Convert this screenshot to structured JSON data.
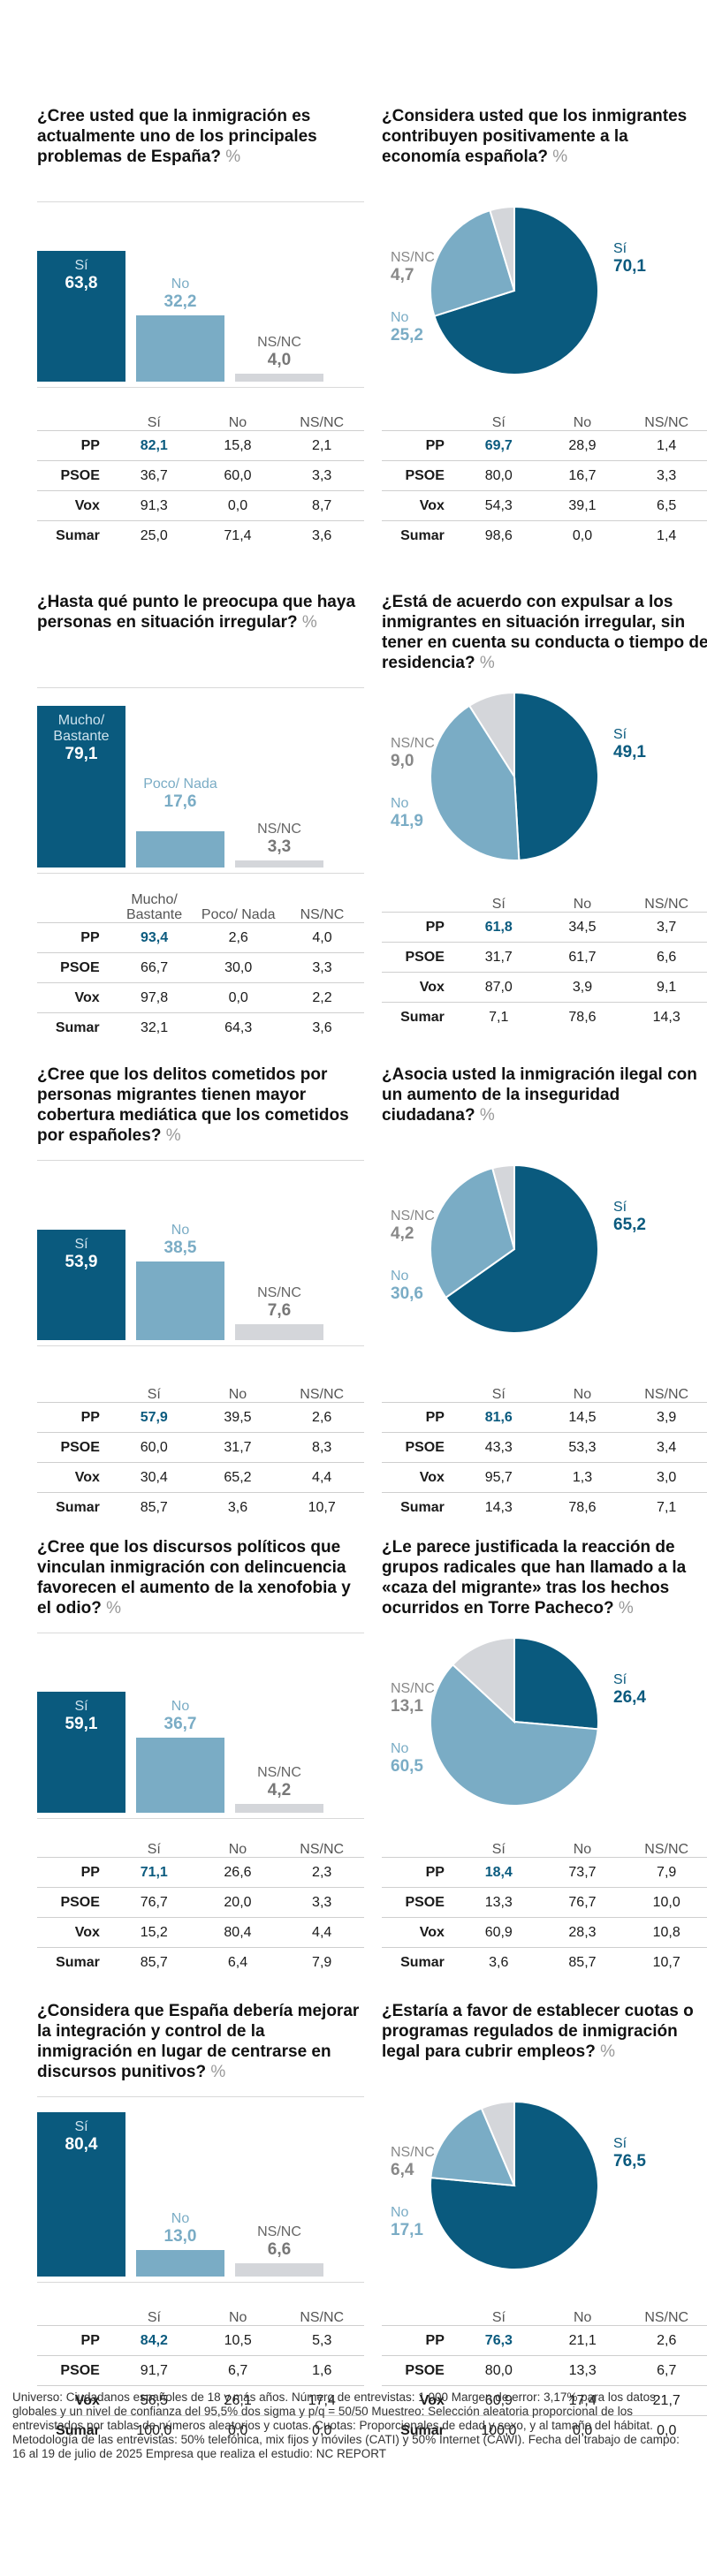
{
  "colors": {
    "dark": "#0a5a7e",
    "light": "#7aacc5",
    "grey": "#d4d6da"
  },
  "panels": [
    {
      "kind": "bar",
      "question": "¿Cree usted que la inmigración es actualmente uno de los principales problemas de España?",
      "unit": "%",
      "chart_labels": [
        "Sí",
        "No",
        "NS/NC"
      ],
      "chart_display": [
        "63,8",
        "32,2",
        "4,0"
      ],
      "table_headers": [
        "Sí",
        "No",
        "NS/NC"
      ],
      "rows": [
        {
          "party": "PP",
          "vals": [
            "82,1",
            "15,8",
            "2,1"
          ]
        },
        {
          "party": "PSOE",
          "vals": [
            "36,7",
            "60,0",
            "3,3"
          ]
        },
        {
          "party": "Vox",
          "vals": [
            "91,3",
            "0,0",
            "8,7"
          ]
        },
        {
          "party": "Sumar",
          "vals": [
            "25,0",
            "71,4",
            "3,6"
          ]
        }
      ]
    },
    {
      "kind": "pie",
      "question": "¿Considera usted que los inmigrantes contribuyen positivamente a la economía española?",
      "unit": "%",
      "chart_labels": [
        "Sí",
        "No",
        "NS/NC"
      ],
      "chart_display": [
        "70,1",
        "25,2",
        "4,7"
      ],
      "table_headers": [
        "Sí",
        "No",
        "NS/NC"
      ],
      "rows": [
        {
          "party": "PP",
          "vals": [
            "69,7",
            "28,9",
            "1,4"
          ]
        },
        {
          "party": "PSOE",
          "vals": [
            "80,0",
            "16,7",
            "3,3"
          ]
        },
        {
          "party": "Vox",
          "vals": [
            "54,3",
            "39,1",
            "6,5"
          ]
        },
        {
          "party": "Sumar",
          "vals": [
            "98,6",
            "0,0",
            "1,4"
          ]
        }
      ]
    },
    {
      "kind": "bar",
      "question": "¿Hasta qué punto le preocupa que haya personas en situación irregular?",
      "unit": "%",
      "chart_labels": [
        "Mucho/ Bastante",
        "Poco/ Nada",
        "NS/NC"
      ],
      "chart_display": [
        "79,1",
        "17,6",
        "3,3"
      ],
      "table_headers": [
        "Mucho/ Bastante",
        "Poco/ Nada",
        "NS/NC"
      ],
      "rows": [
        {
          "party": "PP",
          "vals": [
            "93,4",
            "2,6",
            "4,0"
          ]
        },
        {
          "party": "PSOE",
          "vals": [
            "66,7",
            "30,0",
            "3,3"
          ]
        },
        {
          "party": "Vox",
          "vals": [
            "97,8",
            "0,0",
            "2,2"
          ]
        },
        {
          "party": "Sumar",
          "vals": [
            "32,1",
            "64,3",
            "3,6"
          ]
        }
      ]
    },
    {
      "kind": "pie",
      "question": "¿Está de acuerdo con expulsar a los inmigrantes en situación irregular, sin tener en cuenta su conducta o tiempo de residencia?",
      "unit": "%",
      "chart_labels": [
        "Sí",
        "No",
        "NS/NC"
      ],
      "chart_display": [
        "49,1",
        "41,9",
        "9,0"
      ],
      "table_headers": [
        "Sí",
        "No",
        "NS/NC"
      ],
      "rows": [
        {
          "party": "PP",
          "vals": [
            "61,8",
            "34,5",
            "3,7"
          ]
        },
        {
          "party": "PSOE",
          "vals": [
            "31,7",
            "61,7",
            "6,6"
          ]
        },
        {
          "party": "Vox",
          "vals": [
            "87,0",
            "3,9",
            "9,1"
          ]
        },
        {
          "party": "Sumar",
          "vals": [
            "7,1",
            "78,6",
            "14,3"
          ]
        }
      ]
    },
    {
      "kind": "bar",
      "question": "¿Cree que los delitos cometidos por personas migrantes tienen mayor cobertura mediática que los cometidos por españoles?",
      "unit": "%",
      "chart_labels": [
        "Sí",
        "No",
        "NS/NC"
      ],
      "chart_display": [
        "53,9",
        "38,5",
        "7,6"
      ],
      "table_headers": [
        "Sí",
        "No",
        "NS/NC"
      ],
      "rows": [
        {
          "party": "PP",
          "vals": [
            "57,9",
            "39,5",
            "2,6"
          ]
        },
        {
          "party": "PSOE",
          "vals": [
            "60,0",
            "31,7",
            "8,3"
          ]
        },
        {
          "party": "Vox",
          "vals": [
            "30,4",
            "65,2",
            "4,4"
          ]
        },
        {
          "party": "Sumar",
          "vals": [
            "85,7",
            "3,6",
            "10,7"
          ]
        }
      ]
    },
    {
      "kind": "pie",
      "question": "¿Asocia usted la inmigración ilegal con un aumento de la inseguridad ciudadana?",
      "unit": "%",
      "chart_labels": [
        "Sí",
        "No",
        "NS/NC"
      ],
      "chart_display": [
        "65,2",
        "30,6",
        "4,2"
      ],
      "table_headers": [
        "Sí",
        "No",
        "NS/NC"
      ],
      "rows": [
        {
          "party": "PP",
          "vals": [
            "81,6",
            "14,5",
            "3,9"
          ]
        },
        {
          "party": "PSOE",
          "vals": [
            "43,3",
            "53,3",
            "3,4"
          ]
        },
        {
          "party": "Vox",
          "vals": [
            "95,7",
            "1,3",
            "3,0"
          ]
        },
        {
          "party": "Sumar",
          "vals": [
            "14,3",
            "78,6",
            "7,1"
          ]
        }
      ]
    },
    {
      "kind": "bar",
      "question": "¿Cree que los discursos políticos que vinculan inmigración con delincuencia favorecen el aumento de la xenofobia y el odio?",
      "unit": "%",
      "chart_labels": [
        "Sí",
        "No",
        "NS/NC"
      ],
      "chart_display": [
        "59,1",
        "36,7",
        "4,2"
      ],
      "table_headers": [
        "Sí",
        "No",
        "NS/NC"
      ],
      "rows": [
        {
          "party": "PP",
          "vals": [
            "71,1",
            "26,6",
            "2,3"
          ]
        },
        {
          "party": "PSOE",
          "vals": [
            "76,7",
            "20,0",
            "3,3"
          ]
        },
        {
          "party": "Vox",
          "vals": [
            "15,2",
            "80,4",
            "4,4"
          ]
        },
        {
          "party": "Sumar",
          "vals": [
            "85,7",
            "6,4",
            "7,9"
          ]
        }
      ]
    },
    {
      "kind": "pie",
      "question": "¿Le parece justificada la reacción de grupos radicales que han llamado a la «caza del migrante» tras los hechos ocurridos en Torre Pacheco?",
      "unit": "%",
      "chart_labels": [
        "Sí",
        "No",
        "NS/NC"
      ],
      "chart_display": [
        "26,4",
        "60,5",
        "13,1"
      ],
      "table_headers": [
        "Sí",
        "No",
        "NS/NC"
      ],
      "rows": [
        {
          "party": "PP",
          "vals": [
            "18,4",
            "73,7",
            "7,9"
          ]
        },
        {
          "party": "PSOE",
          "vals": [
            "13,3",
            "76,7",
            "10,0"
          ]
        },
        {
          "party": "Vox",
          "vals": [
            "60,9",
            "28,3",
            "10,8"
          ]
        },
        {
          "party": "Sumar",
          "vals": [
            "3,6",
            "85,7",
            "10,7"
          ]
        }
      ]
    },
    {
      "kind": "bar",
      "question": "¿Considera que España debería mejorar la integración y control de la inmigración en lugar de centrarse en discursos punitivos?",
      "unit": "%",
      "chart_labels": [
        "Sí",
        "No",
        "NS/NC"
      ],
      "chart_display": [
        "80,4",
        "13,0",
        "6,6"
      ],
      "table_headers": [
        "Sí",
        "No",
        "NS/NC"
      ],
      "rows": [
        {
          "party": "PP",
          "vals": [
            "84,2",
            "10,5",
            "5,3"
          ]
        },
        {
          "party": "PSOE",
          "vals": [
            "91,7",
            "6,7",
            "1,6"
          ]
        },
        {
          "party": "Vox",
          "vals": [
            "56,5",
            "26,1",
            "17,4"
          ]
        },
        {
          "party": "Sumar",
          "vals": [
            "100,0",
            "0,0",
            "0,0"
          ]
        }
      ]
    },
    {
      "kind": "pie",
      "question": "¿Estaría a favor de establecer cuotas o programas regulados de inmigración legal para cubrir empleos?",
      "unit": "%",
      "chart_labels": [
        "Sí",
        "No",
        "NS/NC"
      ],
      "chart_display": [
        "76,5",
        "17,1",
        "6,4"
      ],
      "table_headers": [
        "Sí",
        "No",
        "NS/NC"
      ],
      "rows": [
        {
          "party": "PP",
          "vals": [
            "76,3",
            "21,1",
            "2,6"
          ]
        },
        {
          "party": "PSOE",
          "vals": [
            "80,0",
            "13,3",
            "6,7"
          ]
        },
        {
          "party": "Vox",
          "vals": [
            "60,9",
            "17,4",
            "21,7"
          ]
        },
        {
          "party": "Sumar",
          "vals": [
            "100,0",
            "0,0",
            "0,0"
          ]
        }
      ]
    }
  ],
  "chart_data": [
    {
      "type": "bar",
      "title": "¿Cree usted que la inmigración es actualmente uno de los principales problemas de España?",
      "categories": [
        "Sí",
        "No",
        "NS/NC"
      ],
      "values": [
        63.8,
        32.2,
        4.0
      ],
      "ylim": [
        0,
        100
      ]
    },
    {
      "type": "pie",
      "title": "¿Considera usted que los inmigrantes contribuyen positivamente a la economía española?",
      "categories": [
        "Sí",
        "No",
        "NS/NC"
      ],
      "values": [
        70.1,
        25.2,
        4.7
      ]
    },
    {
      "type": "bar",
      "title": "¿Hasta qué punto le preocupa que haya personas en situación irregular?",
      "categories": [
        "Mucho/ Bastante",
        "Poco/ Nada",
        "NS/NC"
      ],
      "values": [
        79.1,
        17.6,
        3.3
      ],
      "ylim": [
        0,
        100
      ]
    },
    {
      "type": "pie",
      "title": "¿Está de acuerdo con expulsar a los inmigrantes en situación irregular, sin tener en cuenta su conducta o tiempo de residencia?",
      "categories": [
        "Sí",
        "No",
        "NS/NC"
      ],
      "values": [
        49.1,
        41.9,
        9.0
      ]
    },
    {
      "type": "bar",
      "title": "¿Cree que los delitos cometidos por personas migrantes tienen mayor cobertura mediática que los cometidos por españoles?",
      "categories": [
        "Sí",
        "No",
        "NS/NC"
      ],
      "values": [
        53.9,
        38.5,
        7.6
      ],
      "ylim": [
        0,
        100
      ]
    },
    {
      "type": "pie",
      "title": "¿Asocia usted la inmigración ilegal con un aumento de la inseguridad ciudadana?",
      "categories": [
        "Sí",
        "No",
        "NS/NC"
      ],
      "values": [
        65.2,
        30.6,
        4.2
      ]
    },
    {
      "type": "bar",
      "title": "¿Cree que los discursos políticos que vinculan inmigración con delincuencia favorecen el aumento de la xenofobia y el odio?",
      "categories": [
        "Sí",
        "No",
        "NS/NC"
      ],
      "values": [
        59.1,
        36.7,
        4.2
      ],
      "ylim": [
        0,
        100
      ]
    },
    {
      "type": "pie",
      "title": "¿Le parece justificada la reacción de grupos radicales que han llamado a la «caza del migrante» tras los hechos ocurridos en Torre Pacheco?",
      "categories": [
        "Sí",
        "No",
        "NS/NC"
      ],
      "values": [
        26.4,
        60.5,
        13.1
      ]
    },
    {
      "type": "bar",
      "title": "¿Considera que España debería mejorar la integración y control de la inmigración en lugar de centrarse en discursos punitivos?",
      "categories": [
        "Sí",
        "No",
        "NS/NC"
      ],
      "values": [
        80.4,
        13.0,
        6.6
      ],
      "ylim": [
        0,
        100
      ]
    },
    {
      "type": "pie",
      "title": "¿Estaría a favor de establecer cuotas o programas regulados de inmigración legal para cubrir empleos?",
      "categories": [
        "Sí",
        "No",
        "NS/NC"
      ],
      "values": [
        76.5,
        17.1,
        6.4
      ]
    }
  ],
  "footnote": "Universo: Ciudadanos españoles de 18 y más años. Número de entrevistas: 1.000 Margen de error: 3,17% para los datos globales y un nivel de confianza del 95,5% dos sigma y p/q = 50/50 Muestreo: Selección aleatoria proporcional de los entrevistados por tablas de números aleatorios y cuotas. Cuotas: Proporcionales de edad y sexo, y al tamaño del hábitat. Metodología de las entrevistas: 50% telefónica, mix fijos y móviles (CATI) y 50% Internet (CAWI). Fecha del trabajo de campo: 16 al 19 de julio de 2025 Empresa que realiza el estudio: NC REPORT"
}
